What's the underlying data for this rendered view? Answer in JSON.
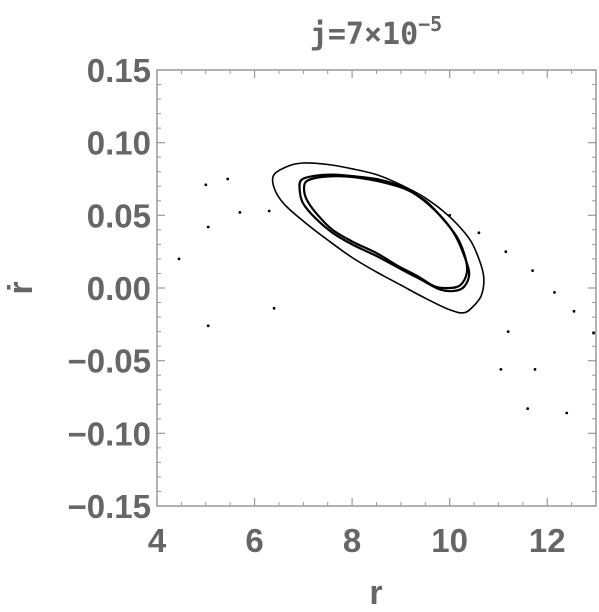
{
  "chart_data": {
    "type": "scatter",
    "title": {
      "main": "j=7×10",
      "exponent": "−5"
    },
    "xlabel": "r",
    "ylabel": "ṙ",
    "xlim": [
      4,
      13
    ],
    "ylim": [
      -0.15,
      0.15
    ],
    "x_ticks": [
      {
        "value": 4,
        "label": "4"
      },
      {
        "value": 6,
        "label": "6"
      },
      {
        "value": 8,
        "label": "8"
      },
      {
        "value": 10,
        "label": "10"
      },
      {
        "value": 12,
        "label": "12"
      }
    ],
    "y_ticks": [
      {
        "value": 0.15,
        "label": "0.15"
      },
      {
        "value": 0.1,
        "label": "0.10"
      },
      {
        "value": 0.05,
        "label": "0.05"
      },
      {
        "value": 0.0,
        "label": "0.00"
      },
      {
        "value": -0.05,
        "label": "−0.05"
      },
      {
        "value": -0.1,
        "label": "−0.10"
      },
      {
        "value": -0.15,
        "label": "−0.15"
      }
    ],
    "grid": false,
    "colors": {
      "axis": "#666666",
      "frame": "#999999",
      "data": "#000000"
    },
    "series": [
      {
        "kind": "curve",
        "points": [
          [
            6.4,
            0.078
          ],
          [
            6.7,
            0.084
          ],
          [
            7.0,
            0.086
          ],
          [
            7.5,
            0.085
          ],
          [
            8.0,
            0.082
          ],
          [
            8.5,
            0.078
          ],
          [
            9.0,
            0.071
          ],
          [
            9.5,
            0.062
          ],
          [
            10.0,
            0.049
          ],
          [
            10.4,
            0.034
          ],
          [
            10.6,
            0.02
          ],
          [
            10.7,
            0.007
          ],
          [
            10.65,
            -0.005
          ],
          [
            10.5,
            -0.012
          ],
          [
            10.3,
            -0.017
          ],
          [
            10.0,
            -0.015
          ],
          [
            9.5,
            -0.007
          ],
          [
            9.0,
            0.002
          ],
          [
            8.5,
            0.011
          ],
          [
            8.0,
            0.021
          ],
          [
            7.5,
            0.033
          ],
          [
            7.0,
            0.046
          ],
          [
            6.6,
            0.058
          ],
          [
            6.4,
            0.069
          ],
          [
            6.4,
            0.078
          ]
        ]
      },
      {
        "kind": "curve",
        "points": [
          [
            6.95,
            0.074
          ],
          [
            7.2,
            0.077
          ],
          [
            7.6,
            0.078
          ],
          [
            8.0,
            0.077
          ],
          [
            8.5,
            0.075
          ],
          [
            9.0,
            0.07
          ],
          [
            9.4,
            0.062
          ],
          [
            9.8,
            0.05
          ],
          [
            10.1,
            0.037
          ],
          [
            10.3,
            0.022
          ],
          [
            10.4,
            0.01
          ],
          [
            10.3,
            0.001
          ],
          [
            10.1,
            -0.002
          ],
          [
            9.8,
            -0.001
          ],
          [
            9.4,
            0.006
          ],
          [
            9.0,
            0.013
          ],
          [
            8.5,
            0.022
          ],
          [
            8.0,
            0.03
          ],
          [
            7.6,
            0.038
          ],
          [
            7.25,
            0.048
          ],
          [
            7.0,
            0.058
          ],
          [
            6.93,
            0.066
          ],
          [
            6.95,
            0.074
          ]
        ]
      },
      {
        "kind": "curve",
        "points": [
          [
            7.05,
            0.073
          ],
          [
            7.3,
            0.076
          ],
          [
            7.7,
            0.077
          ],
          [
            8.1,
            0.076
          ],
          [
            8.6,
            0.073
          ],
          [
            9.1,
            0.068
          ],
          [
            9.5,
            0.06
          ],
          [
            9.85,
            0.048
          ],
          [
            10.15,
            0.035
          ],
          [
            10.32,
            0.021
          ],
          [
            10.35,
            0.01
          ],
          [
            10.22,
            0.002
          ],
          [
            10.0,
            0.0
          ],
          [
            9.7,
            0.001
          ],
          [
            9.35,
            0.008
          ],
          [
            8.95,
            0.015
          ],
          [
            8.5,
            0.024
          ],
          [
            8.0,
            0.032
          ],
          [
            7.6,
            0.04
          ],
          [
            7.3,
            0.05
          ],
          [
            7.1,
            0.059
          ],
          [
            7.02,
            0.066
          ],
          [
            7.05,
            0.073
          ]
        ]
      },
      {
        "kind": "points",
        "points": [
          [
            4.45,
            0.02
          ],
          [
            5.0,
            0.071
          ],
          [
            5.05,
            0.042
          ],
          [
            5.05,
            -0.026
          ],
          [
            5.45,
            0.075
          ],
          [
            5.7,
            0.052
          ],
          [
            6.3,
            0.053
          ],
          [
            6.4,
            -0.014
          ],
          [
            10.0,
            0.05
          ],
          [
            10.6,
            0.038
          ],
          [
            11.15,
            0.025
          ],
          [
            11.05,
            -0.056
          ],
          [
            11.2,
            -0.03
          ],
          [
            11.6,
            -0.083
          ],
          [
            11.7,
            0.012
          ],
          [
            11.75,
            -0.056
          ],
          [
            12.15,
            -0.003
          ],
          [
            12.4,
            -0.086
          ],
          [
            12.55,
            -0.016
          ],
          [
            12.95,
            -0.031
          ]
        ]
      }
    ]
  }
}
